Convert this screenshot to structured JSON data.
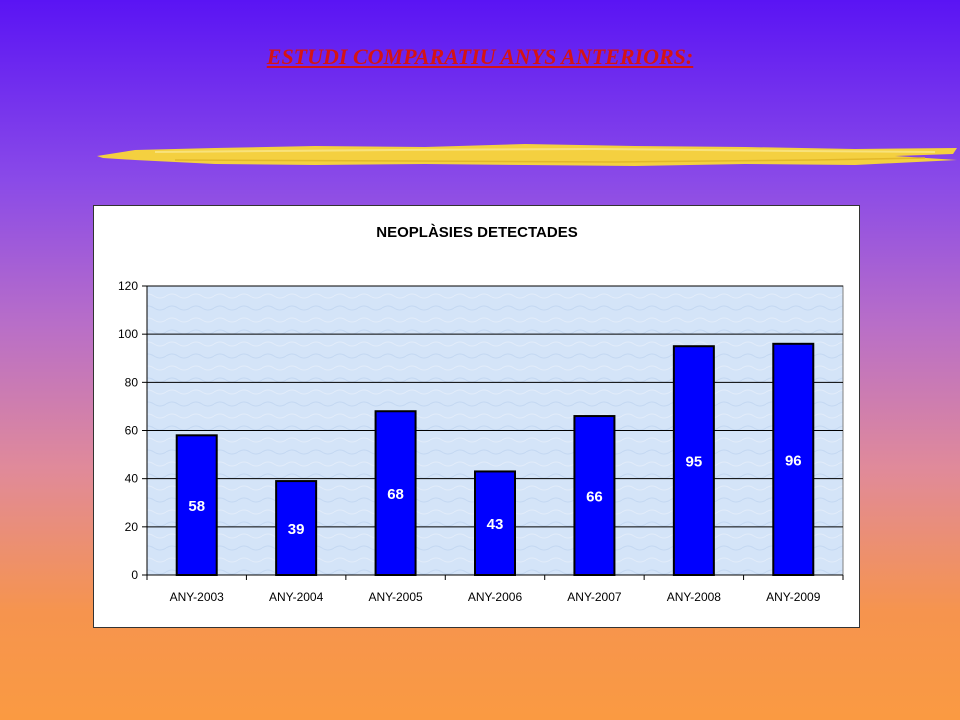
{
  "slide": {
    "title": "ESTUDI COMPARATIU ANYS ANTERIORS:"
  },
  "colors": {
    "bar_fill": "#0000ff",
    "bar_stroke": "#000000",
    "plot_background": "#d4e4f8",
    "title_color": "#d41414",
    "brush_color": "#f4d040"
  },
  "chart_data": {
    "type": "bar",
    "title": "NEOPLÀSIES DETECTADES",
    "categories": [
      "ANY-2003",
      "ANY-2004",
      "ANY-2005",
      "ANY-2006",
      "ANY-2007",
      "ANY-2008",
      "ANY-2009"
    ],
    "values": [
      58,
      39,
      68,
      43,
      66,
      95,
      96
    ],
    "data_labels": [
      "58",
      "39",
      "68",
      "43",
      "66",
      "95",
      "96"
    ],
    "ylim": [
      0,
      120
    ],
    "yticks": [
      0,
      20,
      40,
      60,
      80,
      100,
      120
    ],
    "grid": true,
    "legend": "none",
    "xlabel": "",
    "ylabel": ""
  }
}
